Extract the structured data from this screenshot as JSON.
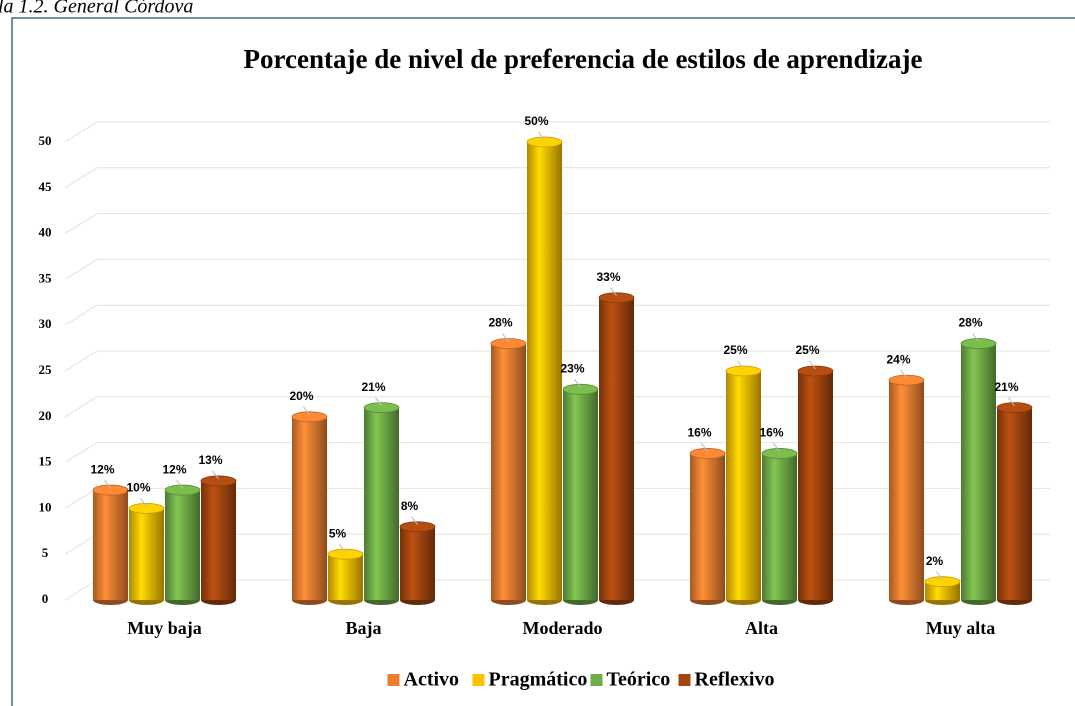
{
  "caption": "la 1.2. General Córdova",
  "chart_data": {
    "type": "bar",
    "title": "Porcentaje de nivel de preferencia de estilos de aprendizaje",
    "categories": [
      "Muy baja",
      "Baja",
      "Moderado",
      "Alta",
      "Muy alta"
    ],
    "series": [
      {
        "name": "Activo",
        "color": "#ed7d31",
        "values": [
          12,
          20,
          28,
          16,
          24
        ],
        "value_labels": [
          "12%",
          "20%",
          "28%",
          "16%",
          "24%"
        ]
      },
      {
        "name": "Pragmático",
        "color": "#ffc000",
        "values": [
          10,
          5,
          50,
          25,
          2
        ],
        "value_labels": [
          "10%",
          "5%",
          "50%",
          "25%",
          "2%"
        ]
      },
      {
        "name": "Teórico",
        "color": "#70ad47",
        "values": [
          12,
          21,
          23,
          16,
          28
        ],
        "value_labels": [
          "12%",
          "21%",
          "23%",
          "16%",
          "28%"
        ]
      },
      {
        "name": "Reflexivo",
        "color": "#a5460f",
        "values": [
          13,
          8,
          33,
          25,
          21
        ],
        "value_labels": [
          "13%",
          "8%",
          "33%",
          "25%",
          "21%"
        ]
      }
    ],
    "ylim": [
      0,
      50
    ],
    "yticks": [
      0,
      5,
      10,
      15,
      20,
      25,
      30,
      35,
      40,
      45,
      50
    ],
    "grid": true,
    "legend": "bottom"
  }
}
